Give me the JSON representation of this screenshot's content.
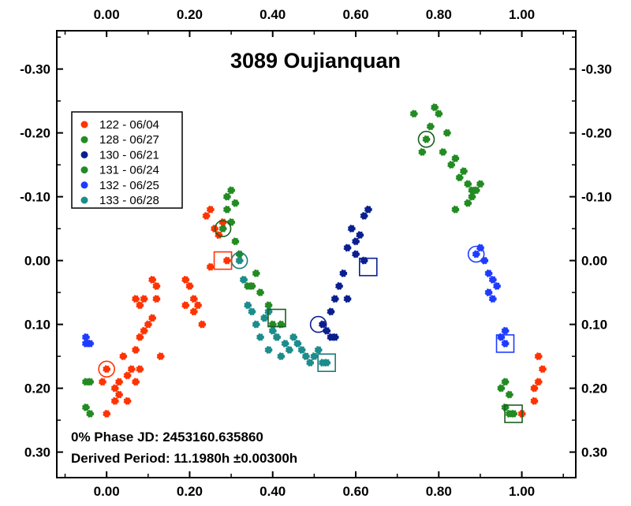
{
  "chart_data": {
    "type": "scatter",
    "title": "3089 Oujianquan",
    "xlabel": "",
    "ylabel": "",
    "xlim": [
      -0.12,
      1.13
    ],
    "ylim": [
      -0.36,
      0.34
    ],
    "y_inverted": true,
    "x_ticks": [
      "0.00",
      "0.20",
      "0.40",
      "0.60",
      "0.80",
      "1.00"
    ],
    "x_tick_values": [
      0.0,
      0.2,
      0.4,
      0.6,
      0.8,
      1.0
    ],
    "y_ticks": [
      "-0.30",
      "-0.20",
      "-0.10",
      "0.00",
      "0.10",
      "0.20",
      "0.30"
    ],
    "y_tick_values": [
      -0.3,
      -0.2,
      -0.1,
      0.0,
      0.1,
      0.2,
      0.3
    ],
    "legend_position": "upper-left",
    "series": [
      {
        "name": "122 - 06/04",
        "color": "#ff3300",
        "points": [
          [
            0.0,
            0.17
          ],
          [
            0.02,
            0.2
          ],
          [
            0.03,
            0.21
          ],
          [
            0.03,
            0.19
          ],
          [
            0.05,
            0.18
          ],
          [
            0.06,
            0.17
          ],
          [
            0.04,
            0.15
          ],
          [
            0.07,
            0.14
          ],
          [
            0.08,
            0.12
          ],
          [
            0.09,
            0.11
          ],
          [
            0.1,
            0.1
          ],
          [
            0.11,
            0.09
          ],
          [
            0.12,
            0.06
          ],
          [
            0.12,
            0.04
          ],
          [
            0.11,
            0.03
          ],
          [
            0.13,
            0.15
          ],
          [
            0.07,
            0.06
          ],
          [
            0.08,
            0.07
          ],
          [
            0.09,
            0.06
          ],
          [
            0.08,
            0.17
          ],
          [
            0.07,
            0.19
          ],
          [
            0.05,
            0.22
          ],
          [
            0.0,
            0.24
          ],
          [
            -0.01,
            0.19
          ],
          [
            0.02,
            0.22
          ],
          [
            0.19,
            0.07
          ],
          [
            0.2,
            0.04
          ],
          [
            0.19,
            0.03
          ],
          [
            0.21,
            0.06
          ],
          [
            0.22,
            0.07
          ],
          [
            0.23,
            0.1
          ],
          [
            0.21,
            0.08
          ],
          [
            0.25,
            0.01
          ],
          [
            0.24,
            -0.07
          ],
          [
            0.25,
            -0.08
          ],
          [
            0.26,
            -0.05
          ],
          [
            0.27,
            -0.04
          ],
          [
            0.28,
            -0.06
          ],
          [
            0.29,
            0.0
          ],
          [
            1.0,
            0.24
          ],
          [
            1.03,
            0.2
          ],
          [
            1.04,
            0.19
          ],
          [
            1.05,
            0.17
          ],
          [
            1.04,
            0.15
          ],
          [
            1.03,
            0.22
          ]
        ]
      },
      {
        "name": "128 - 06/27",
        "color": "#228b22",
        "points": [
          [
            0.74,
            -0.23
          ],
          [
            0.76,
            -0.17
          ],
          [
            0.77,
            -0.19
          ],
          [
            0.78,
            -0.21
          ],
          [
            0.79,
            -0.24
          ],
          [
            0.8,
            -0.23
          ],
          [
            0.81,
            -0.17
          ],
          [
            0.82,
            -0.2
          ],
          [
            0.83,
            -0.15
          ],
          [
            0.84,
            -0.16
          ],
          [
            0.85,
            -0.13
          ],
          [
            0.86,
            -0.14
          ],
          [
            0.87,
            -0.12
          ],
          [
            0.88,
            -0.11
          ],
          [
            0.89,
            -0.11
          ],
          [
            0.9,
            -0.12
          ],
          [
            0.87,
            -0.09
          ],
          [
            0.88,
            -0.1
          ],
          [
            0.84,
            -0.08
          ]
        ]
      },
      {
        "name": "130 - 06/21",
        "color": "#0a1f8f",
        "points": [
          [
            0.52,
            0.1
          ],
          [
            0.53,
            0.11
          ],
          [
            0.54,
            0.12
          ],
          [
            0.54,
            0.08
          ],
          [
            0.55,
            0.06
          ],
          [
            0.56,
            0.04
          ],
          [
            0.57,
            0.02
          ],
          [
            0.58,
            -0.02
          ],
          [
            0.59,
            -0.05
          ],
          [
            0.6,
            -0.03
          ],
          [
            0.61,
            -0.04
          ],
          [
            0.62,
            -0.07
          ],
          [
            0.63,
            -0.08
          ],
          [
            0.6,
            -0.01
          ],
          [
            0.62,
            0.0
          ],
          [
            0.58,
            0.06
          ],
          [
            0.55,
            0.12
          ]
        ]
      },
      {
        "name": "131 - 06/24",
        "color": "#228b22",
        "points": [
          [
            0.28,
            -0.05
          ],
          [
            0.29,
            -0.1
          ],
          [
            0.29,
            -0.08
          ],
          [
            0.3,
            -0.11
          ],
          [
            0.31,
            -0.09
          ],
          [
            0.3,
            -0.06
          ],
          [
            0.31,
            -0.03
          ],
          [
            0.32,
            -0.01
          ],
          [
            0.33,
            0.03
          ],
          [
            0.34,
            0.04
          ],
          [
            0.35,
            0.04
          ],
          [
            0.36,
            0.02
          ],
          [
            0.37,
            0.05
          ],
          [
            0.38,
            0.09
          ],
          [
            0.39,
            0.07
          ],
          [
            0.4,
            0.1
          ],
          [
            0.41,
            0.12
          ],
          [
            0.42,
            0.1
          ],
          [
            -0.05,
            0.19
          ],
          [
            -0.04,
            0.19
          ],
          [
            -0.05,
            0.23
          ],
          [
            -0.04,
            0.24
          ],
          [
            0.95,
            0.2
          ],
          [
            0.96,
            0.19
          ],
          [
            0.97,
            0.21
          ],
          [
            0.96,
            0.23
          ],
          [
            0.97,
            0.24
          ],
          [
            0.98,
            0.24
          ]
        ]
      },
      {
        "name": "132 - 06/25",
        "color": "#1e3cff",
        "points": [
          [
            0.89,
            -0.01
          ],
          [
            0.9,
            -0.02
          ],
          [
            0.91,
            0.0
          ],
          [
            0.92,
            0.02
          ],
          [
            0.93,
            0.03
          ],
          [
            0.92,
            0.05
          ],
          [
            0.93,
            0.06
          ],
          [
            0.94,
            0.04
          ],
          [
            0.95,
            0.12
          ],
          [
            0.96,
            0.13
          ],
          [
            0.96,
            0.11
          ],
          [
            -0.05,
            0.12
          ],
          [
            -0.04,
            0.13
          ],
          [
            -0.05,
            0.13
          ]
        ]
      },
      {
        "name": "133 - 06/28",
        "color": "#1c8c8c",
        "points": [
          [
            0.32,
            0.0
          ],
          [
            0.33,
            0.03
          ],
          [
            0.34,
            0.07
          ],
          [
            0.35,
            0.08
          ],
          [
            0.36,
            0.1
          ],
          [
            0.37,
            0.12
          ],
          [
            0.38,
            0.09
          ],
          [
            0.39,
            0.08
          ],
          [
            0.4,
            0.11
          ],
          [
            0.41,
            0.12
          ],
          [
            0.43,
            0.13
          ],
          [
            0.44,
            0.14
          ],
          [
            0.45,
            0.12
          ],
          [
            0.46,
            0.13
          ],
          [
            0.47,
            0.14
          ],
          [
            0.48,
            0.15
          ],
          [
            0.49,
            0.16
          ],
          [
            0.5,
            0.15
          ],
          [
            0.51,
            0.14
          ],
          [
            0.52,
            0.16
          ],
          [
            0.53,
            0.16
          ],
          [
            0.42,
            0.15
          ],
          [
            0.39,
            0.14
          ]
        ]
      }
    ],
    "circle_markers": [
      {
        "x": 0.0,
        "y": 0.17,
        "color": "#ff3300"
      },
      {
        "x": 0.28,
        "y": -0.05,
        "color": "#1b5e20"
      },
      {
        "x": 0.32,
        "y": 0.0,
        "color": "#1c7a7a"
      },
      {
        "x": 0.51,
        "y": 0.1,
        "color": "#0a1f8f"
      },
      {
        "x": 0.77,
        "y": -0.19,
        "color": "#1b5e20"
      },
      {
        "x": 0.89,
        "y": -0.01,
        "color": "#1e3cff"
      }
    ],
    "square_markers": [
      {
        "x": 0.28,
        "y": 0.0,
        "color": "#ff3300"
      },
      {
        "x": 0.41,
        "y": 0.09,
        "color": "#1b5e20"
      },
      {
        "x": 0.53,
        "y": 0.16,
        "color": "#1c7a7a"
      },
      {
        "x": 0.63,
        "y": 0.01,
        "color": "#0a1f8f"
      },
      {
        "x": 0.96,
        "y": 0.13,
        "color": "#1e3cff"
      },
      {
        "x": 0.98,
        "y": 0.24,
        "color": "#1b5e20"
      }
    ]
  },
  "info": {
    "phase_line": "0% Phase JD:  2453160.635860",
    "period_line": "Derived Period: 11.1980h  ±0.00300h"
  }
}
